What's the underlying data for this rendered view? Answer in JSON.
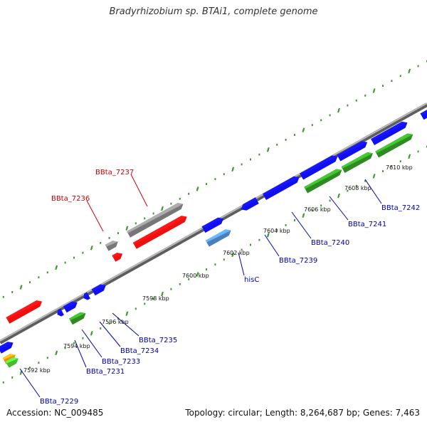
{
  "title": "Bradyrhizobium sp. BTAi1, complete genome",
  "footer": {
    "accession": "Accession: NC_009485",
    "summary": "Topology: circular; Length: 8,264,687 bp; Genes: 7,463"
  },
  "colors": {
    "backbone": "#8a8a8a",
    "ruler": "#3a9a2a",
    "gene_blue": "#1010ee",
    "gene_red": "#ee1010",
    "gene_gray": "#777777",
    "gene_green": "#2e8b22",
    "gene_steelblue": "#4a7fc0",
    "gene_orange": "#f08a10",
    "label_blue": "#0000aa",
    "label_red": "#cc0000"
  },
  "ticks": [
    "7592 kbp",
    "7594 kbp",
    "7596 kbp",
    "7598 kbp",
    "7600 kbp",
    "7602 kbp",
    "7604 kbp",
    "7606 kbp",
    "7608 kbp",
    "7610 kbp"
  ],
  "gene_labels": [
    "BBta_7229",
    "BBta_7231",
    "BBta_7233",
    "BBta_7234",
    "BBta_7235",
    "hisC",
    "BBta_7239",
    "BBta_7240",
    "BBta_7241",
    "BBta_7242",
    "BBta_7236",
    "BBta_7237"
  ]
}
